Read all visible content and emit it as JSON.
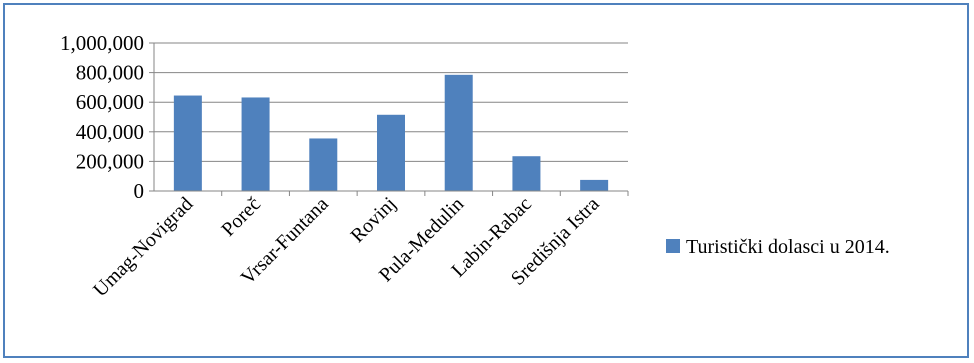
{
  "chart_data": {
    "type": "bar",
    "categories": [
      "Umag-Novigrad",
      "Poreč",
      "Vrsar-Funtana",
      "Rovinj",
      "Pula-Medulin",
      "Labin-Rabac",
      "Središnja Istra"
    ],
    "series": [
      {
        "name": "Turistički dolasci u 2014.",
        "values": [
          645000,
          632000,
          355000,
          515000,
          785000,
          235000,
          75000
        ],
        "color": "#4f81bd"
      }
    ],
    "yticks": [
      "0",
      "200,000",
      "400,000",
      "600,000",
      "800,000",
      "1,000,000"
    ],
    "ylim": [
      0,
      1000000
    ],
    "grid": true,
    "legend_position": "right"
  }
}
